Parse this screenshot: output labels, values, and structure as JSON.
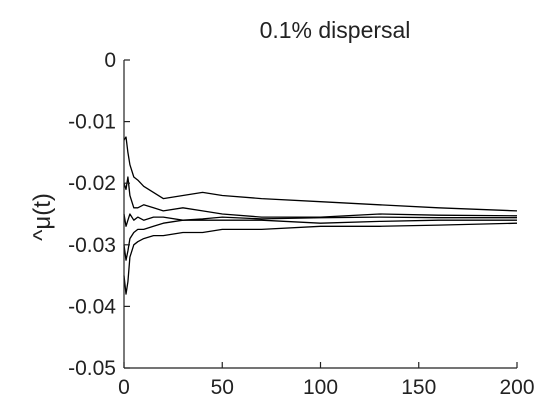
{
  "chart_data": {
    "type": "line",
    "title": "0.1% dispersal",
    "xlabel": "",
    "ylabel": "^μ(t)",
    "xlim": [
      0,
      200
    ],
    "ylim": [
      -0.05,
      0
    ],
    "xticks": [
      0,
      50,
      100,
      150,
      200
    ],
    "yticks": [
      0,
      -0.01,
      -0.02,
      -0.03,
      -0.04,
      -0.05
    ],
    "xtick_labels": [
      "0",
      "50",
      "100",
      "150",
      "200"
    ],
    "ytick_labels": [
      "0",
      "-0.01",
      "-0.02",
      "-0.03",
      "-0.04",
      "-0.05"
    ],
    "grid": false,
    "legend": "none",
    "series": [
      {
        "x": [
          0,
          1,
          2,
          3,
          5,
          7,
          10,
          15,
          20,
          30,
          40,
          50,
          70,
          100,
          130,
          160,
          200
        ],
        "y": [
          -0.013,
          -0.0125,
          -0.015,
          -0.017,
          -0.019,
          -0.0195,
          -0.0205,
          -0.0215,
          -0.0225,
          -0.022,
          -0.0215,
          -0.022,
          -0.0225,
          -0.023,
          -0.0235,
          -0.024,
          -0.0245
        ]
      },
      {
        "x": [
          0,
          1,
          2,
          3,
          5,
          7,
          10,
          15,
          20,
          30,
          40,
          50,
          70,
          100,
          130,
          160,
          200
        ],
        "y": [
          -0.02,
          -0.021,
          -0.019,
          -0.022,
          -0.024,
          -0.024,
          -0.0235,
          -0.024,
          -0.0245,
          -0.024,
          -0.0245,
          -0.025,
          -0.0255,
          -0.0255,
          -0.025,
          -0.0252,
          -0.0253
        ]
      },
      {
        "x": [
          0,
          1,
          2,
          3,
          5,
          7,
          10,
          15,
          20,
          30,
          40,
          50,
          70,
          100,
          130,
          160,
          200
        ],
        "y": [
          -0.025,
          -0.027,
          -0.026,
          -0.025,
          -0.026,
          -0.0255,
          -0.026,
          -0.0255,
          -0.0255,
          -0.026,
          -0.0258,
          -0.0255,
          -0.0258,
          -0.0256,
          -0.0255,
          -0.0256,
          -0.0256
        ]
      },
      {
        "x": [
          0,
          1,
          2,
          3,
          5,
          7,
          10,
          15,
          20,
          30,
          40,
          50,
          70,
          100,
          130,
          160,
          200
        ],
        "y": [
          -0.03,
          -0.0325,
          -0.031,
          -0.029,
          -0.028,
          -0.0275,
          -0.0275,
          -0.027,
          -0.0265,
          -0.026,
          -0.026,
          -0.026,
          -0.026,
          -0.0265,
          -0.0262,
          -0.026,
          -0.026
        ]
      },
      {
        "x": [
          0,
          1,
          2,
          3,
          5,
          7,
          10,
          15,
          20,
          30,
          40,
          50,
          70,
          100,
          130,
          160,
          200
        ],
        "y": [
          -0.035,
          -0.038,
          -0.036,
          -0.032,
          -0.03,
          -0.0295,
          -0.029,
          -0.0285,
          -0.0285,
          -0.028,
          -0.028,
          -0.0275,
          -0.0275,
          -0.027,
          -0.027,
          -0.0268,
          -0.0265
        ]
      }
    ]
  }
}
